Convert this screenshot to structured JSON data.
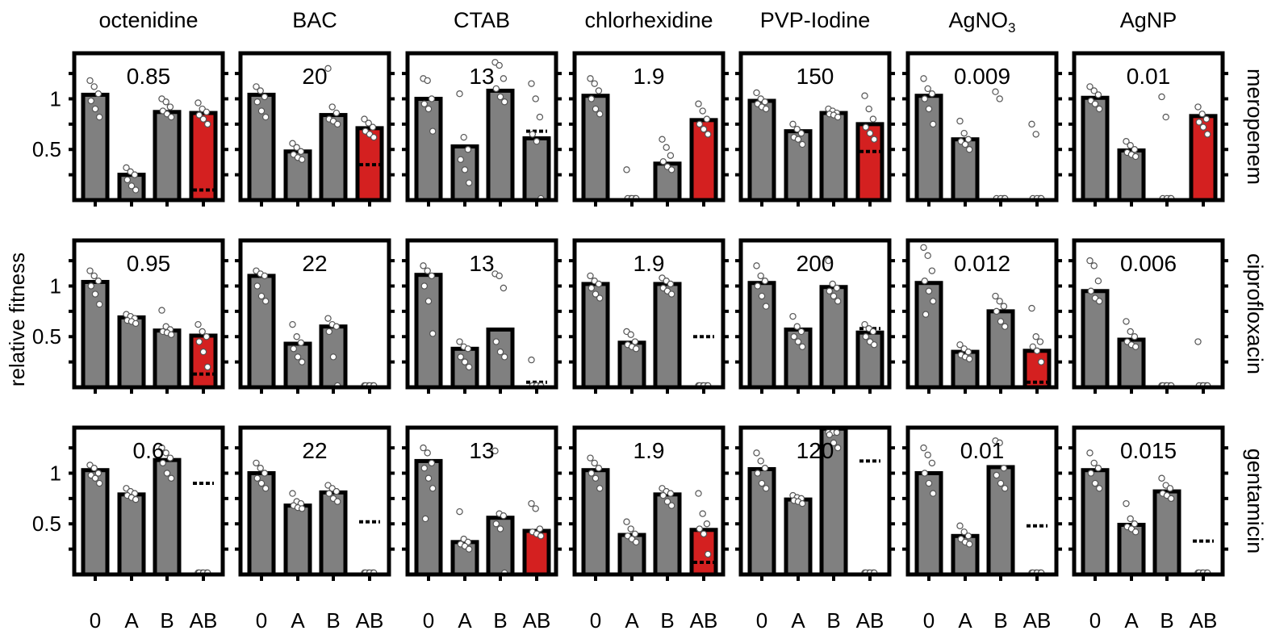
{
  "chart_data": {
    "type": "bar",
    "title": "",
    "ylabel": "relative fitness",
    "categories": [
      "0",
      "A",
      "B",
      "AB"
    ],
    "y_ticks": [
      {
        "value": 1,
        "label": "1"
      },
      {
        "value": 0.5,
        "label": "0.5"
      }
    ],
    "ylim": [
      0,
      1.45
    ],
    "colors": {
      "bar": "#808080",
      "synergy": "#d42020",
      "dot": "#ffffff",
      "outline": "#000000"
    },
    "columns": [
      {
        "name": "octenidine"
      },
      {
        "name": "BAC"
      },
      {
        "name": "CTAB"
      },
      {
        "name": "chlorhexidine"
      },
      {
        "name": "PVP-Iodine"
      },
      {
        "name": "AgNO",
        "sub": "3"
      },
      {
        "name": "AgNP"
      }
    ],
    "rows": [
      "meropenem",
      "ciprofloxacin",
      "gentamicin"
    ],
    "panels": [
      [
        {
          "conc": "0.85",
          "values": [
            1.04,
            0.25,
            0.87,
            0.86
          ],
          "highlight": true,
          "expected": 0.1,
          "dots": [
            [
              1.18,
              1.12,
              1.05,
              0.98,
              0.9,
              0.82
            ],
            [
              0.32,
              0.28,
              0.25,
              0.2,
              0.14,
              0.1
            ],
            [
              1.0,
              0.97,
              0.92,
              0.88,
              0.85,
              0.82
            ],
            [
              0.96,
              0.9,
              0.87,
              0.84,
              0.8,
              0.75
            ]
          ]
        },
        {
          "conc": "20",
          "values": [
            1.04,
            0.48,
            0.84,
            0.71
          ],
          "highlight": true,
          "expected": 0.35,
          "dots": [
            [
              1.12,
              1.08,
              1.02,
              0.97,
              0.88,
              0.82
            ],
            [
              0.56,
              0.52,
              0.48,
              0.45,
              0.42,
              0.4
            ],
            [
              1.3,
              0.92,
              0.86,
              0.8,
              0.78,
              0.75
            ],
            [
              0.8,
              0.76,
              0.72,
              0.68,
              0.65,
              0.62
            ]
          ]
        },
        {
          "conc": "13",
          "values": [
            1.0,
            0.53,
            1.08,
            0.61
          ],
          "highlight": false,
          "expected": 0.68,
          "dots": [
            [
              1.2,
              1.18,
              1.0,
              0.95,
              0.9,
              0.68
            ],
            [
              1.05,
              0.62,
              0.5,
              0.4,
              0.3,
              0.17
            ],
            [
              1.36,
              1.33,
              1.2,
              1.1,
              1.02,
              0.97
            ],
            [
              1.15,
              1.0,
              0.82,
              0.65,
              0.58,
              0.0
            ]
          ]
        },
        {
          "conc": "1.9",
          "values": [
            1.03,
            0.0,
            0.36,
            0.79
          ],
          "highlight": true,
          "expected": null,
          "dots": [
            [
              1.2,
              1.15,
              1.08,
              1.0,
              0.9,
              0.85
            ],
            [
              0.3,
              0.0,
              0.0,
              0.0,
              0.0,
              0.0
            ],
            [
              0.6,
              0.52,
              0.44,
              0.38,
              0.33,
              0.3
            ],
            [
              0.95,
              0.88,
              0.8,
              0.75,
              0.7,
              0.65
            ]
          ]
        },
        {
          "conc": "150",
          "values": [
            0.98,
            0.68,
            0.86,
            0.75
          ],
          "highlight": true,
          "expected": 0.48,
          "dots": [
            [
              1.06,
              1.0,
              0.97,
              0.95,
              0.92,
              0.9
            ],
            [
              0.75,
              0.7,
              0.66,
              0.62,
              0.6,
              0.55
            ],
            [
              0.9,
              0.88,
              0.86,
              0.85,
              0.84,
              0.82
            ],
            [
              1.03,
              0.9,
              0.8,
              0.72,
              0.66,
              0.6
            ]
          ]
        },
        {
          "conc": "0.009",
          "values": [
            1.03,
            0.6,
            0.0,
            0.0
          ],
          "highlight": false,
          "expected": null,
          "dots": [
            [
              1.2,
              1.1,
              1.05,
              1.0,
              0.9,
              0.75
            ],
            [
              0.78,
              0.66,
              0.6,
              0.58,
              0.55,
              0.5
            ],
            [
              1.07,
              1.0,
              0.0,
              0.0,
              0.0,
              0.0
            ],
            [
              0.75,
              0.65,
              0.0,
              0.0,
              0.0,
              0.0
            ]
          ]
        },
        {
          "conc": "0.01",
          "values": [
            1.01,
            0.49,
            0.0,
            0.83
          ],
          "highlight": true,
          "expected": null,
          "dots": [
            [
              1.12,
              1.08,
              1.04,
              0.98,
              0.95,
              0.9
            ],
            [
              0.58,
              0.54,
              0.5,
              0.47,
              0.45,
              0.43
            ],
            [
              1.02,
              0.82,
              0.0,
              0.0,
              0.0,
              0.0
            ],
            [
              0.92,
              0.85,
              0.8,
              0.77,
              0.72,
              0.65
            ]
          ]
        }
      ],
      [
        {
          "conc": "0.95",
          "values": [
            1.04,
            0.69,
            0.56,
            0.51
          ],
          "highlight": true,
          "expected": 0.13,
          "dots": [
            [
              1.15,
              1.1,
              1.05,
              1.0,
              0.92,
              0.82
            ],
            [
              0.72,
              0.7,
              0.68,
              0.66,
              0.65,
              0.63
            ],
            [
              0.76,
              0.6,
              0.57,
              0.55,
              0.54,
              0.52
            ],
            [
              0.62,
              0.55,
              0.5,
              0.45,
              0.35,
              0.2
            ]
          ]
        },
        {
          "conc": "22",
          "values": [
            1.1,
            0.43,
            0.6,
            0.0
          ],
          "highlight": false,
          "expected": null,
          "dots": [
            [
              1.15,
              1.12,
              1.1,
              1.0,
              0.9,
              0.85
            ],
            [
              0.62,
              0.5,
              0.44,
              0.38,
              0.3,
              0.25
            ],
            [
              0.68,
              0.62,
              0.6,
              0.55,
              0.3,
              0.0
            ],
            [
              0.0,
              0.0,
              0.0,
              0.0,
              0.0,
              0.0
            ]
          ]
        },
        {
          "conc": "13",
          "values": [
            1.11,
            0.38,
            0.57,
            0.0
          ],
          "highlight": false,
          "expected": 0.05,
          "dots": [
            [
              1.2,
              1.15,
              1.1,
              1.0,
              0.85,
              0.53
            ],
            [
              0.45,
              0.4,
              0.38,
              0.3,
              0.25,
              0.2
            ],
            [
              1.12,
              1.1,
              0.98,
              0.45,
              0.35,
              0.3
            ],
            [
              0.27,
              0.0,
              0.0,
              0.0,
              0.0,
              0.0
            ]
          ]
        },
        {
          "conc": "1.9",
          "values": [
            1.02,
            0.44,
            1.02,
            0.0
          ],
          "highlight": false,
          "expected": 0.5,
          "dots": [
            [
              1.1,
              1.05,
              1.02,
              0.98,
              0.92,
              0.88
            ],
            [
              0.55,
              0.52,
              0.45,
              0.42,
              0.4,
              0.38
            ],
            [
              1.08,
              1.05,
              1.02,
              0.98,
              0.95,
              0.92
            ],
            [
              0.0,
              0.0,
              0.0,
              0.0,
              0.0,
              0.0
            ]
          ]
        },
        {
          "conc": "200",
          "values": [
            1.03,
            0.57,
            0.99,
            0.54
          ],
          "highlight": false,
          "expected": 0.58,
          "dots": [
            [
              1.2,
              1.1,
              1.05,
              1.0,
              0.9,
              0.8
            ],
            [
              0.7,
              0.6,
              0.55,
              0.5,
              0.45,
              0.4
            ],
            [
              1.25,
              1.02,
              0.98,
              0.95,
              0.9,
              0.85
            ],
            [
              0.62,
              0.58,
              0.55,
              0.5,
              0.45,
              0.42
            ]
          ]
        },
        {
          "conc": "0.012",
          "values": [
            1.03,
            0.35,
            0.75,
            0.36
          ],
          "highlight": true,
          "expected": 0.05,
          "dots": [
            [
              1.38,
              1.3,
              1.15,
              1.05,
              0.95,
              0.85,
              0.72
            ],
            [
              0.42,
              0.38,
              0.35,
              0.32,
              0.3,
              0.28
            ],
            [
              0.9,
              0.85,
              0.8,
              0.75,
              0.65,
              0.6
            ],
            [
              0.78,
              0.5,
              0.45,
              0.4,
              0.36,
              0.25
            ]
          ]
        },
        {
          "conc": "0.006",
          "values": [
            0.95,
            0.47,
            0.0,
            0.0
          ],
          "highlight": false,
          "expected": null,
          "dots": [
            [
              1.25,
              1.2,
              1.05,
              0.95,
              0.88,
              0.85
            ],
            [
              0.65,
              0.55,
              0.5,
              0.45,
              0.42,
              0.4
            ],
            [
              0.0,
              0.0,
              0.0,
              0.0,
              0.0,
              0.0
            ],
            [
              0.45,
              0.0,
              0.0,
              0.0,
              0.0,
              0.0
            ]
          ]
        }
      ],
      [
        {
          "conc": "0.6",
          "values": [
            1.03,
            0.79,
            1.13,
            0.0
          ],
          "highlight": false,
          "expected": 0.9,
          "dots": [
            [
              1.08,
              1.05,
              1.0,
              0.98,
              0.95,
              0.9
            ],
            [
              0.85,
              0.82,
              0.8,
              0.78,
              0.76,
              0.74
            ],
            [
              1.25,
              1.2,
              1.15,
              1.1,
              1.0,
              0.95
            ],
            [
              0.0,
              0.0,
              0.0,
              0.0,
              0.0,
              0.0
            ]
          ]
        },
        {
          "conc": "22",
          "values": [
            1.0,
            0.68,
            0.81,
            0.0
          ],
          "highlight": false,
          "expected": 0.52,
          "dots": [
            [
              1.1,
              1.05,
              1.0,
              0.95,
              0.9,
              0.85
            ],
            [
              0.8,
              0.72,
              0.7,
              0.68,
              0.66,
              0.65
            ],
            [
              0.88,
              0.85,
              0.82,
              0.8,
              0.75,
              0.72
            ],
            [
              0.0,
              0.0,
              0.0,
              0.0,
              0.0,
              0.0
            ]
          ]
        },
        {
          "conc": "13",
          "values": [
            1.12,
            0.32,
            0.56,
            0.43
          ],
          "highlight": true,
          "expected": null,
          "dots": [
            [
              1.25,
              1.2,
              1.1,
              1.05,
              0.95,
              0.85,
              0.55
            ],
            [
              0.62,
              0.35,
              0.32,
              0.3,
              0.28,
              0.25
            ],
            [
              1.22,
              0.6,
              0.58,
              0.5,
              0.45,
              0.0
            ],
            [
              0.7,
              0.65,
              0.45,
              0.42,
              0.4,
              0.38
            ]
          ]
        },
        {
          "conc": "1.9",
          "values": [
            1.03,
            0.39,
            0.79,
            0.44
          ],
          "highlight": true,
          "expected": 0.12,
          "dots": [
            [
              1.15,
              1.1,
              1.05,
              1.0,
              0.95,
              0.85
            ],
            [
              0.52,
              0.45,
              0.4,
              0.38,
              0.35,
              0.32
            ],
            [
              0.85,
              0.82,
              0.8,
              0.78,
              0.72,
              0.68
            ],
            [
              0.8,
              0.6,
              0.5,
              0.45,
              0.4,
              0.2
            ]
          ]
        },
        {
          "conc": "120",
          "values": [
            1.04,
            0.74,
            1.44,
            0.0
          ],
          "highlight": false,
          "expected": 1.12,
          "dots": [
            [
              1.2,
              1.12,
              1.05,
              1.0,
              0.9,
              0.85
            ],
            [
              0.78,
              0.76,
              0.75,
              0.73,
              0.72,
              0.7
            ],
            [
              1.5,
              1.45,
              1.42,
              1.38,
              1.3,
              1.25
            ],
            [
              0.0,
              0.0,
              0.0,
              0.0,
              0.0,
              0.0
            ]
          ]
        },
        {
          "conc": "0.01",
          "values": [
            1.0,
            0.38,
            1.06,
            0.0
          ],
          "highlight": false,
          "expected": 0.48,
          "dots": [
            [
              1.25,
              1.18,
              1.1,
              1.0,
              0.9,
              0.8
            ],
            [
              0.48,
              0.42,
              0.38,
              0.35,
              0.32,
              0.3
            ],
            [
              1.32,
              1.3,
              1.05,
              0.98,
              0.9,
              0.85
            ],
            [
              0.0,
              0.0,
              0.0,
              0.0,
              0.0,
              0.0
            ]
          ]
        },
        {
          "conc": "0.015",
          "values": [
            1.03,
            0.49,
            0.82,
            0.0
          ],
          "highlight": false,
          "expected": 0.33,
          "dots": [
            [
              1.2,
              1.1,
              1.05,
              1.0,
              0.9,
              0.85
            ],
            [
              0.7,
              0.55,
              0.5,
              0.47,
              0.45,
              0.42
            ],
            [
              0.95,
              0.88,
              0.85,
              0.8,
              0.78,
              0.75
            ],
            [
              0.0,
              0.0,
              0.0,
              0.0,
              0.0,
              0.0
            ]
          ]
        }
      ]
    ]
  }
}
